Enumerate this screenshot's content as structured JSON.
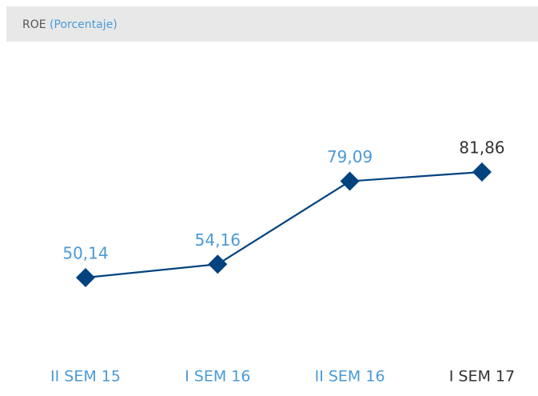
{
  "chart_data": {
    "type": "line",
    "title": "ROE",
    "subtitle": "(Porcentaje)",
    "categories": [
      "II SEM 15",
      "I SEM 16",
      "II SEM 16",
      "I SEM 17"
    ],
    "series": [
      {
        "name": "ROE",
        "color": "#00437f",
        "values": [
          50.14,
          54.16,
          79.09,
          81.86
        ]
      }
    ],
    "value_labels": [
      "50,14",
      "54,16",
      "79,09",
      "81,86"
    ],
    "value_label_colors": [
      "#4a9ad6",
      "#4a9ad6",
      "#4a9ad6",
      "#333333"
    ],
    "category_colors": [
      "#4a9ad6",
      "#4a9ad6",
      "#4a9ad6",
      "#333333"
    ],
    "subtitle_color": "#4a9ad6"
  }
}
